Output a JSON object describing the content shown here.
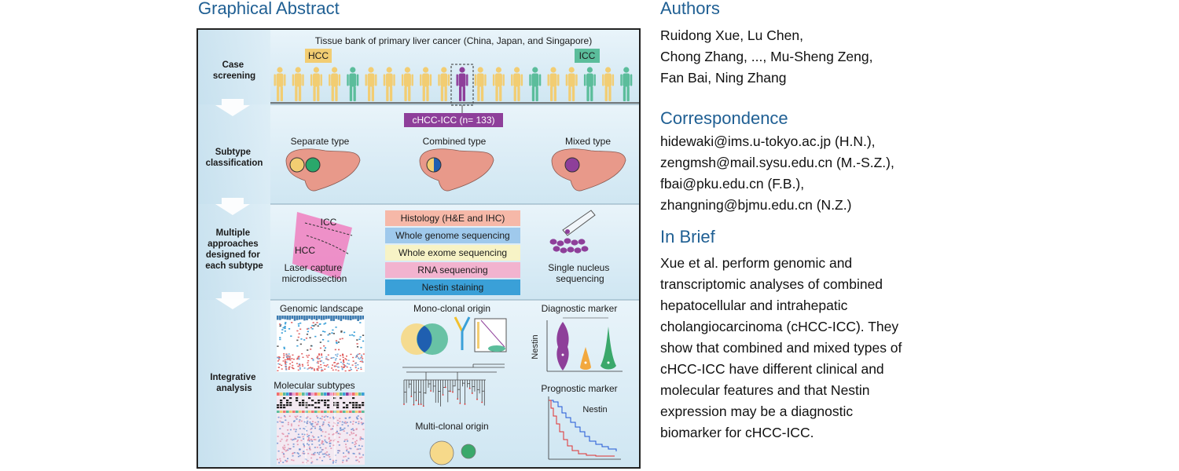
{
  "graphical_abstract": {
    "title": "Graphical Abstract",
    "stages": {
      "case_screening": [
        "Case",
        "screening"
      ],
      "subtype_classification": [
        "Subtype",
        "classification"
      ],
      "multiple_approaches": [
        "Multiple",
        "approaches",
        "designed for",
        "each subtype"
      ],
      "integrative_analysis": [
        "Integrative",
        "analysis"
      ]
    },
    "tissue_bank": "Tissue bank of primary liver cancer (China, Japan, and Singapore)",
    "hcc_tag": "HCC",
    "icc_tag": "ICC",
    "cohort_label": "cHCC-ICC (n= 133)",
    "subtypes": [
      "Separate type",
      "Combined type",
      "Mixed type"
    ],
    "lcm": {
      "icc": "ICC",
      "hcc": "HCC",
      "caption": [
        "Laser capture",
        "microdissection"
      ]
    },
    "approaches": [
      {
        "label": "Histology (H&E and IHC)",
        "color": "#f6b8a8"
      },
      {
        "label": "Whole genome sequencing",
        "color": "#9fc9ec"
      },
      {
        "label": "Whole exome sequencing",
        "color": "#f7f3c6"
      },
      {
        "label": "RNA sequencing",
        "color": "#f2b3cf"
      },
      {
        "label": "Nestin staining",
        "color": "#3aa0d8"
      }
    ],
    "snseq_caption": [
      "Single nucleus",
      "sequencing"
    ],
    "analysis": {
      "genomic_landscape": "Genomic landscape",
      "molecular_subtypes": "Molecular subtypes",
      "mono_clonal": "Mono-clonal origin",
      "multi_clonal": "Multi-clonal origin",
      "diagnostic": "Diagnostic marker",
      "nestin_axis": "Nestin",
      "prognostic": "Prognostic marker",
      "km_label": "Nestin"
    },
    "colors": {
      "hcc": "#f2cd72",
      "icc": "#5bbd9b",
      "chcc": "#8e3f9a",
      "liver": "#e8998a"
    }
  },
  "authors": {
    "title": "Authors",
    "lines": [
      "Ruidong Xue, Lu Chen,",
      "Chong Zhang, ..., Mu-Sheng Zeng,",
      "Fan Bai, Ning Zhang"
    ]
  },
  "correspondence": {
    "title": "Correspondence",
    "lines": [
      "hidewaki@ims.u-tokyo.ac.jp (H.N.),",
      "zengmsh@mail.sysu.edu.cn (M.-S.Z.),",
      "fbai@pku.edu.cn (F.B.),",
      "zhangning@bjmu.edu.cn (N.Z.)"
    ]
  },
  "in_brief": {
    "title": "In Brief",
    "lines": [
      "Xue et al. perform genomic and",
      "transcriptomic analyses of combined",
      "hepatocellular and intrahepatic",
      "cholangiocarcinoma (cHCC-ICC). They",
      "show that combined and mixed types of",
      "cHCC-ICC have different clinical and",
      "molecular features and that Nestin",
      "expression may be a diagnostic",
      "biomarker for cHCC-ICC."
    ]
  }
}
